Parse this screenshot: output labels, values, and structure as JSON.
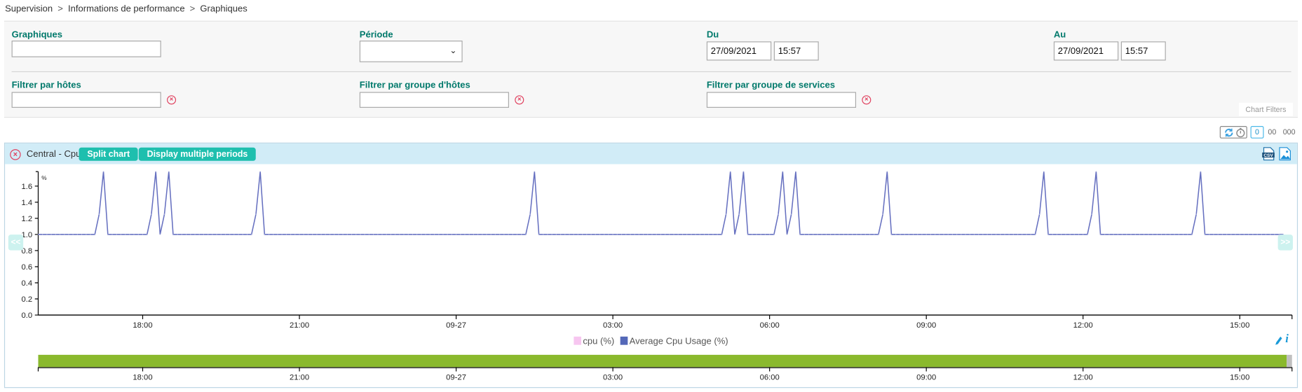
{
  "breadcrumb": [
    "Supervision",
    "Informations de performance",
    "Graphiques"
  ],
  "breadcrumb_separator": ">",
  "filters": {
    "graphiques": {
      "label": "Graphiques",
      "value": ""
    },
    "periode": {
      "label": "Période",
      "value": ""
    },
    "du": {
      "label": "Du",
      "date": "27/09/2021",
      "time": "15:57"
    },
    "au": {
      "label": "Au",
      "date": "27/09/2021",
      "time": "15:57"
    },
    "hosts": {
      "label": "Filtrer par hôtes",
      "value": ""
    },
    "hostgroups": {
      "label": "Filtrer par groupe d'hôtes",
      "value": ""
    },
    "servicegroups": {
      "label": "Filtrer par groupe de services",
      "value": ""
    },
    "chart_filters_tab": "Chart Filters"
  },
  "toolbar": {
    "icons": [
      "refresh-icon",
      "timer-icon"
    ],
    "layouts": [
      "0",
      "00",
      "000"
    ],
    "selected_layout": "0"
  },
  "chart_panel": {
    "title": "Central - Cpu",
    "split_label": "Split chart",
    "multi_label": "Display multiple periods",
    "prev_label": "<<",
    "next_label": ">>",
    "export_icons": [
      "csv-icon",
      "image-export-icon"
    ]
  },
  "legend": [
    {
      "name": "cpu (%)",
      "color": "#f7c6f0"
    },
    {
      "name": "Average Cpu Usage (%)",
      "color": "#5468b8"
    }
  ],
  "chart_data": {
    "type": "line",
    "ylabel": "%",
    "ylim": [
      0,
      1.78
    ],
    "yticks": [
      "0.0",
      "0.2",
      "0.4",
      "0.6",
      "0.8",
      "1.0",
      "1.2",
      "1.4",
      "1.6"
    ],
    "xlim": [
      "2021-09-26 16:00",
      "2021-09-27 16:00"
    ],
    "xticks": [
      {
        "t": "2021-09-26 18:00",
        "label": "18:00"
      },
      {
        "t": "2021-09-26 21:00",
        "label": "21:00"
      },
      {
        "t": "2021-09-27 00:00",
        "label": "09-27"
      },
      {
        "t": "2021-09-27 03:00",
        "label": "03:00"
      },
      {
        "t": "2021-09-27 06:00",
        "label": "06:00"
      },
      {
        "t": "2021-09-27 09:00",
        "label": "09:00"
      },
      {
        "t": "2021-09-27 12:00",
        "label": "12:00"
      },
      {
        "t": "2021-09-27 15:00",
        "label": "15:00"
      }
    ],
    "line_color": "#6670c0",
    "baseline": 1.0,
    "series_range": [
      "2021-09-26 16:00",
      "2021-09-27 15:50"
    ],
    "peak_value": 1.78,
    "ramp_value": 1.25,
    "peaks": [
      "2021-09-26 17:15",
      "2021-09-26 18:15",
      "2021-09-26 18:30",
      "2021-09-26 20:15",
      "2021-09-27 01:30",
      "2021-09-27 05:15",
      "2021-09-27 05:30",
      "2021-09-27 06:15",
      "2021-09-27 06:30",
      "2021-09-27 08:15",
      "2021-09-27 11:15",
      "2021-09-27 12:15",
      "2021-09-27 14:15"
    ],
    "navigator_color": "#8ab92d"
  }
}
